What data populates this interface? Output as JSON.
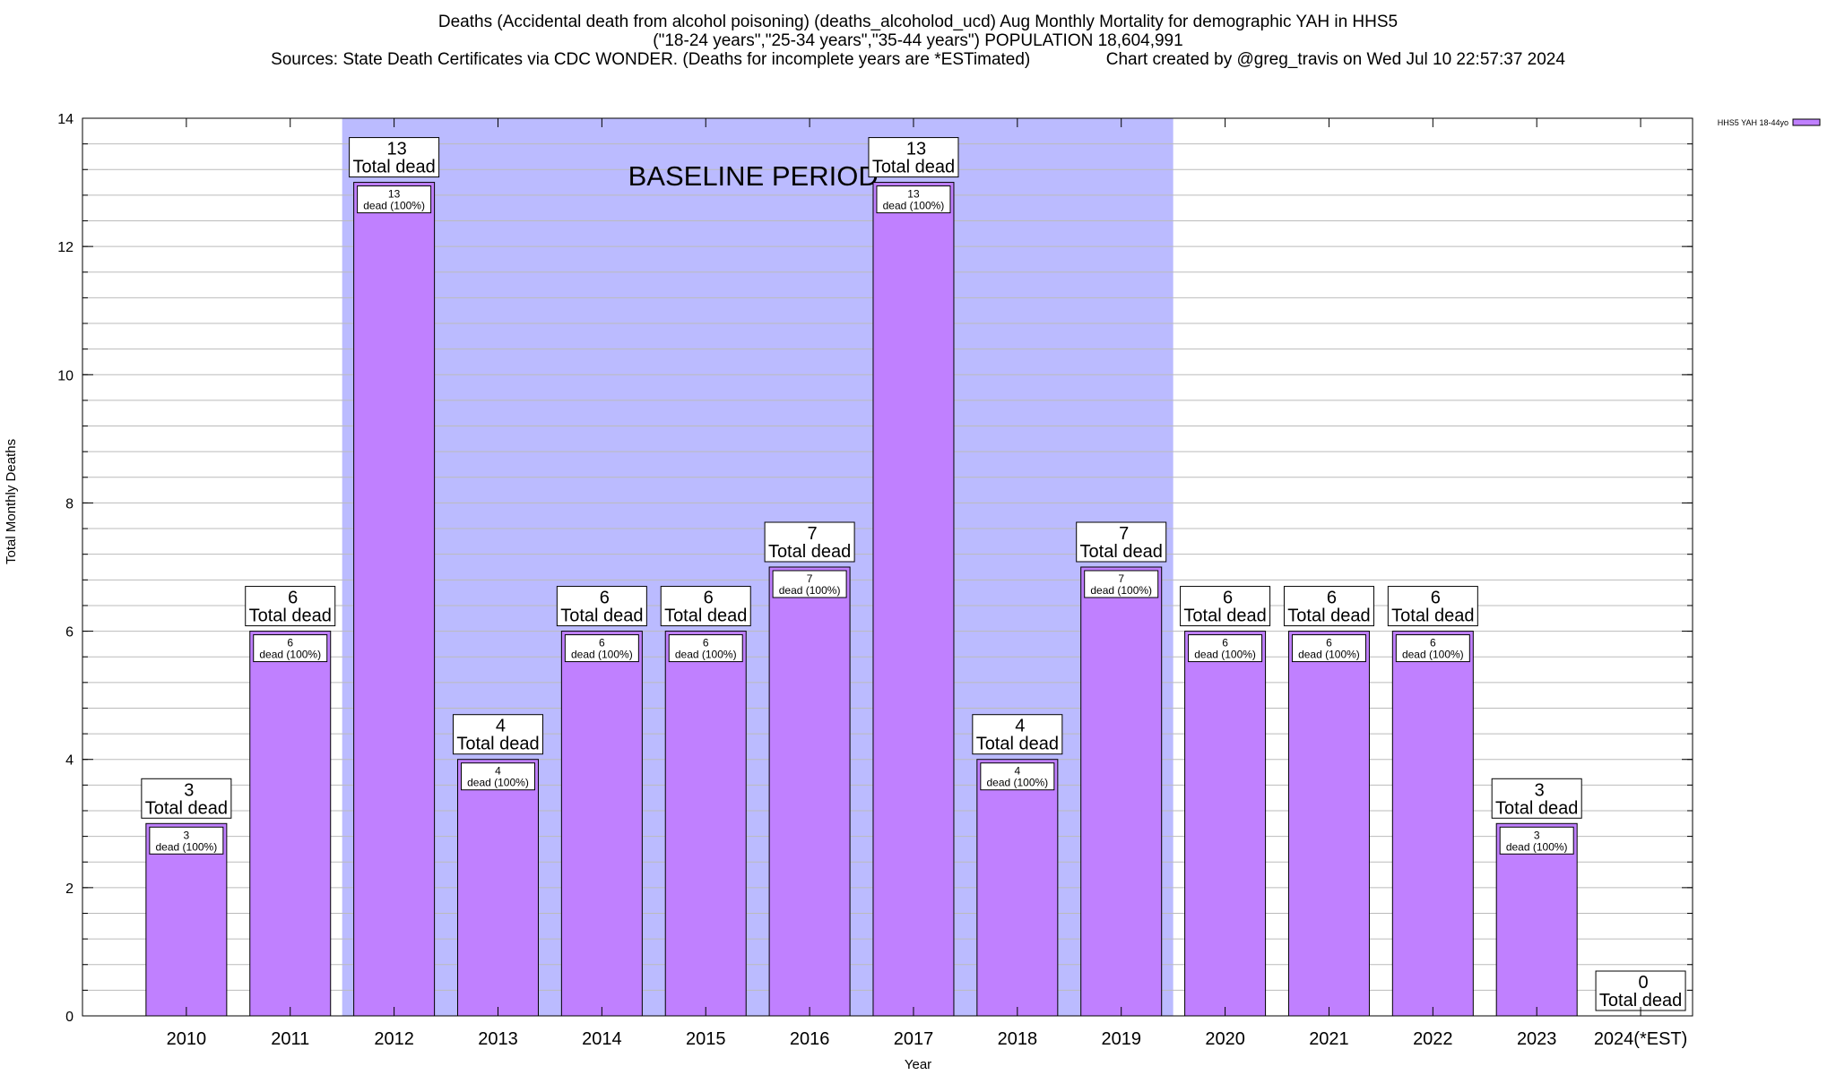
{
  "title": {
    "line1": "Deaths (Accidental death from alcohol poisoning) (deaths_alcoholod_ucd) Aug Monthly Mortality for demographic YAH in HHS5",
    "line2": "(\"18-24 years\",\"25-34 years\",\"35-44 years\") POPULATION 18,604,991",
    "line3_left": "Sources: State Death Certificates via CDC WONDER. (Deaths for incomplete years are *ESTimated)",
    "line3_right": "Chart created by @greg_travis on Wed Jul 10 22:57:37 2024"
  },
  "chart_data": {
    "type": "bar",
    "xlabel": "Year",
    "ylabel": "Total Monthly Deaths",
    "ylim": [
      0,
      14
    ],
    "yticks": [
      0,
      2,
      4,
      6,
      8,
      10,
      12,
      14
    ],
    "grid": true,
    "legend": {
      "placement": "top-right",
      "label": "HHS5 YAH 18-44yo"
    },
    "categories": [
      "2010",
      "2011",
      "2012",
      "2013",
      "2014",
      "2015",
      "2016",
      "2017",
      "2018",
      "2019",
      "2020",
      "2021",
      "2022",
      "2023",
      "2024(*EST)"
    ],
    "series": [
      {
        "name": "HHS5 YAH 18-44yo",
        "values": [
          3,
          6,
          13,
          4,
          6,
          6,
          7,
          13,
          4,
          7,
          6,
          6,
          6,
          3,
          0
        ]
      }
    ],
    "total_label_text": "Total dead",
    "inner_label_text": "dead (100%)",
    "baseline": {
      "label": "BASELINE PERIOD",
      "start": "2012",
      "end": "2019"
    },
    "colors": {
      "bar": "#c080ff",
      "baseline": "#bbbbff",
      "grid": "#bbbbbb"
    }
  }
}
